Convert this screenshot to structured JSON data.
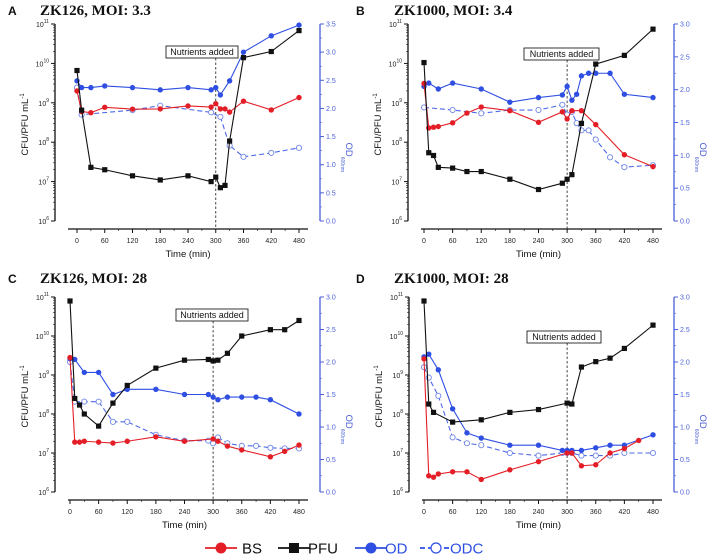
{
  "legend": [
    {
      "name": "BS",
      "color": "#e41e26",
      "marker": "filled-circle",
      "line": "solid"
    },
    {
      "name": "PFU",
      "color": "#111111",
      "marker": "square",
      "line": "solid"
    },
    {
      "name": "OD",
      "color": "#2f4fe3",
      "marker": "filled-circle",
      "line": "solid"
    },
    {
      "name": "ODC",
      "color": "#2f4fe3",
      "marker": "open-circle",
      "line": "dashed"
    }
  ],
  "chart_data": [
    {
      "panel": "A",
      "title": "ZK126, MOI: 3.3",
      "type": "line",
      "xlabel": "Time (min)",
      "ylabel": "CFU/PFU mL",
      "ylabel_sup": "-1",
      "y2label": "OD",
      "y2label_sub": "600nm",
      "xlim": [
        0,
        480
      ],
      "xticks": [
        0,
        60,
        120,
        180,
        240,
        300,
        360,
        420,
        480
      ],
      "yscale": "log",
      "ylim": [
        1000000.0,
        100000000000.0
      ],
      "ytick_exponents": [
        6,
        7,
        8,
        9,
        10,
        11
      ],
      "y2lim": [
        0,
        3.5
      ],
      "y2ticks": [
        "0.0",
        "0.5",
        "1.0",
        "1.5",
        "2.0",
        "2.5",
        "3.0",
        "3.5"
      ],
      "annotation": {
        "text": "Nutrients added",
        "x": 300
      },
      "series": [
        {
          "name": "BS",
          "axis": "left",
          "x": [
            0,
            10,
            30,
            60,
            120,
            180,
            240,
            290,
            300,
            310,
            320,
            330,
            360,
            420,
            480
          ],
          "y": [
            2000000000.0,
            600000000.0,
            560000000.0,
            770000000.0,
            690000000.0,
            700000000.0,
            830000000.0,
            780000000.0,
            950000000.0,
            700000000.0,
            700000000.0,
            580000000.0,
            1100000000.0,
            660000000.0,
            1360000000.0
          ]
        },
        {
          "name": "PFU",
          "axis": "left",
          "x": [
            0,
            10,
            30,
            60,
            120,
            180,
            240,
            290,
            300,
            310,
            320,
            330,
            360,
            420,
            480
          ],
          "y": [
            6600000000.0,
            650000000.0,
            23000000.0,
            20000000.0,
            14000000.0,
            11000000.0,
            14000000.0,
            10000000.0,
            13000000.0,
            7000000.0,
            8000000.0,
            107000000.0,
            14000000000.0,
            20000000000.0,
            68000000000.0
          ]
        },
        {
          "name": "OD",
          "axis": "right",
          "x": [
            0,
            10,
            30,
            60,
            120,
            180,
            240,
            290,
            300,
            310,
            330,
            360,
            420,
            480
          ],
          "y": [
            2.49,
            2.37,
            2.37,
            2.4,
            2.37,
            2.33,
            2.37,
            2.33,
            2.37,
            2.24,
            2.49,
            3.0,
            3.29,
            3.48
          ]
        },
        {
          "name": "ODC",
          "axis": "right",
          "x": [
            0,
            10,
            120,
            180,
            290,
            310,
            330,
            360,
            420,
            480
          ],
          "y": [
            2.37,
            1.89,
            1.97,
            2.05,
            1.93,
            1.85,
            1.34,
            1.14,
            1.21,
            1.3
          ]
        }
      ]
    },
    {
      "panel": "B",
      "title": "ZK1000, MOI: 3.4",
      "type": "line",
      "xlabel": "Time (min)",
      "ylabel": "CFU/PFU mL",
      "ylabel_sup": "-1",
      "y2label": "OD",
      "y2label_sub": "600nm",
      "xlim": [
        0,
        480
      ],
      "xticks": [
        0,
        60,
        120,
        180,
        240,
        300,
        360,
        420,
        480
      ],
      "yscale": "log",
      "ylim": [
        1000000.0,
        100000000000.0
      ],
      "ytick_exponents": [
        6,
        7,
        8,
        9,
        10,
        11
      ],
      "y2lim": [
        0,
        3.0
      ],
      "y2ticks": [
        "0.0",
        "0.5",
        "1.0",
        "1.5",
        "2.0",
        "2.5",
        "3.0"
      ],
      "annotation": {
        "text": "Nutrients added",
        "x": 300
      },
      "series": [
        {
          "name": "BS",
          "axis": "left",
          "x": [
            0,
            10,
            20,
            30,
            60,
            90,
            120,
            180,
            240,
            290,
            300,
            310,
            330,
            360,
            420,
            480
          ],
          "y": [
            3100000000.0,
            230000000.0,
            240000000.0,
            250000000.0,
            310000000.0,
            550000000.0,
            780000000.0,
            630000000.0,
            320000000.0,
            590000000.0,
            390000000.0,
            630000000.0,
            630000000.0,
            280000000.0,
            48000000.0,
            24000000.0
          ]
        },
        {
          "name": "PFU",
          "axis": "left",
          "x": [
            0,
            10,
            20,
            30,
            60,
            90,
            120,
            180,
            240,
            290,
            300,
            310,
            330,
            360,
            420,
            480
          ],
          "y": [
            10500000000.0,
            54000000.0,
            46000000.0,
            23000000.0,
            22000000.0,
            18000000.0,
            18000000.0,
            11500000.0,
            6300000.0,
            9100000.0,
            11500000.0,
            15000000.0,
            300000000.0,
            9600000000.0,
            16000000000.0,
            74000000000.0
          ]
        },
        {
          "name": "OD",
          "axis": "right",
          "x": [
            0,
            10,
            30,
            60,
            120,
            180,
            240,
            290,
            300,
            310,
            320,
            330,
            345,
            360,
            390,
            420,
            480
          ],
          "y": [
            2.05,
            2.1,
            2.01,
            2.1,
            2.01,
            1.81,
            1.88,
            1.92,
            2.05,
            1.84,
            1.93,
            2.21,
            2.25,
            2.25,
            2.25,
            1.93,
            1.88
          ]
        },
        {
          "name": "ODC",
          "axis": "right",
          "x": [
            0,
            60,
            120,
            180,
            240,
            290,
            300,
            310,
            320,
            330,
            345,
            360,
            390,
            420,
            480
          ],
          "y": [
            1.73,
            1.69,
            1.64,
            1.69,
            1.69,
            1.77,
            1.62,
            1.66,
            1.49,
            1.38,
            1.38,
            1.24,
            0.97,
            0.82,
            0.85
          ]
        }
      ]
    },
    {
      "panel": "C",
      "title": "ZK126, MOI: 28",
      "type": "line",
      "xlabel": "Time (min)",
      "ylabel": "CFU/PFU mL",
      "ylabel_sup": "-1",
      "y2label": "OD",
      "y2label_sub": "600nm",
      "xlim": [
        0,
        480
      ],
      "xticks": [
        0,
        60,
        120,
        180,
        240,
        300,
        360,
        420,
        480
      ],
      "yscale": "log",
      "ylim": [
        1000000.0,
        100000000000.0
      ],
      "ytick_exponents": [
        6,
        7,
        8,
        9,
        10,
        11
      ],
      "y2lim": [
        0,
        3.0
      ],
      "y2ticks": [
        "0.0",
        "0.5",
        "1.0",
        "1.5",
        "2.0",
        "2.5",
        "3.0"
      ],
      "annotation": {
        "text": "Nutrients added",
        "x": 300
      },
      "series": [
        {
          "name": "BS",
          "axis": "left",
          "x": [
            0,
            10,
            20,
            30,
            60,
            90,
            120,
            180,
            240,
            300,
            310,
            330,
            360,
            420,
            450,
            480
          ],
          "y": [
            2800000000.0,
            19000000.0,
            19000000.0,
            20000000.0,
            19000000.0,
            18000000.0,
            20000000.0,
            26000000.0,
            20000000.0,
            23000000.0,
            20000000.0,
            15000000.0,
            12000000.0,
            8000000.0,
            11000000.0,
            16000000.0
          ]
        },
        {
          "name": "PFU",
          "axis": "left",
          "x": [
            0,
            10,
            20,
            30,
            60,
            90,
            120,
            180,
            240,
            290,
            300,
            310,
            330,
            360,
            420,
            450,
            480
          ],
          "y": [
            79000000000.0,
            250000000.0,
            170000000.0,
            100000000.0,
            49000000.0,
            190000000.0,
            540000000.0,
            1500000000.0,
            2400000000.0,
            2500000000.0,
            2300000000.0,
            2400000000.0,
            3600000000.0,
            10000000000.0,
            14500000000.0,
            14500000000.0,
            25000000000.0
          ]
        },
        {
          "name": "OD",
          "axis": "right",
          "x": [
            0,
            10,
            30,
            60,
            90,
            120,
            180,
            240,
            290,
            300,
            310,
            330,
            360,
            390,
            420,
            480
          ],
          "y": [
            2.05,
            2.04,
            1.84,
            1.84,
            1.5,
            1.58,
            1.58,
            1.5,
            1.5,
            1.46,
            1.42,
            1.46,
            1.46,
            1.46,
            1.42,
            1.2
          ]
        },
        {
          "name": "ODC",
          "axis": "right",
          "x": [
            0,
            10,
            30,
            60,
            90,
            120,
            180,
            240,
            290,
            300,
            310,
            330,
            360,
            390,
            420,
            450,
            480
          ],
          "y": [
            2.0,
            1.39,
            1.39,
            1.39,
            1.08,
            1.08,
            0.88,
            0.79,
            0.79,
            0.75,
            0.84,
            0.75,
            0.71,
            0.71,
            0.68,
            0.67,
            0.67
          ]
        }
      ]
    },
    {
      "panel": "D",
      "title": "ZK1000, MOI: 28",
      "type": "line",
      "xlabel": "Time (min)",
      "ylabel": "CFU/PFU mL",
      "ylabel_sup": "-1",
      "y2label": "OD",
      "y2label_sub": "600nm",
      "xlim": [
        0,
        480
      ],
      "xticks": [
        0,
        60,
        120,
        180,
        240,
        300,
        360,
        420,
        480
      ],
      "yscale": "log",
      "ylim": [
        1000000.0,
        100000000000.0
      ],
      "ytick_exponents": [
        6,
        7,
        8,
        9,
        10,
        11
      ],
      "y2lim": [
        0,
        3.0
      ],
      "y2ticks": [
        "0.0",
        "0.5",
        "1.0",
        "1.5",
        "2.0",
        "2.5",
        "3.0"
      ],
      "annotation": {
        "text": "Nutrients added",
        "x": 300
      },
      "series": [
        {
          "name": "BS",
          "axis": "left",
          "x": [
            0,
            10,
            20,
            30,
            60,
            90,
            120,
            180,
            240,
            300,
            310,
            330,
            360,
            390,
            420,
            450
          ],
          "y": [
            2600000000.0,
            2600000.0,
            2400000.0,
            2900000.0,
            3300000.0,
            3300000.0,
            2100000.0,
            3700000.0,
            6000000.0,
            10000000.0,
            10000000.0,
            4700000.0,
            5000000.0,
            10000000.0,
            13000000.0,
            21000000.0
          ]
        },
        {
          "name": "PFU",
          "axis": "left",
          "x": [
            0,
            10,
            20,
            60,
            120,
            180,
            240,
            300,
            310,
            330,
            360,
            390,
            420,
            480
          ],
          "y": [
            79000000000.0,
            180000000.0,
            110000000.0,
            62000000.0,
            71000000.0,
            110000000.0,
            130000000.0,
            190000000.0,
            180000000.0,
            1600000000.0,
            2200000000.0,
            2700000000.0,
            4800000000.0,
            19000000000.0
          ]
        },
        {
          "name": "OD",
          "axis": "right",
          "x": [
            0,
            10,
            30,
            60,
            90,
            120,
            180,
            240,
            290,
            300,
            310,
            330,
            360,
            390,
            420,
            480
          ],
          "y": [
            2.08,
            2.12,
            1.88,
            1.28,
            0.91,
            0.83,
            0.72,
            0.72,
            0.64,
            0.64,
            0.64,
            0.64,
            0.68,
            0.72,
            0.72,
            0.88
          ]
        },
        {
          "name": "ODC",
          "axis": "right",
          "x": [
            0,
            10,
            30,
            60,
            90,
            120,
            180,
            240,
            290,
            300,
            310,
            330,
            360,
            390,
            420,
            480
          ],
          "y": [
            1.92,
            1.76,
            1.48,
            0.84,
            0.75,
            0.72,
            0.6,
            0.56,
            0.6,
            0.6,
            0.6,
            0.56,
            0.56,
            0.56,
            0.6,
            0.6
          ]
        }
      ]
    }
  ]
}
